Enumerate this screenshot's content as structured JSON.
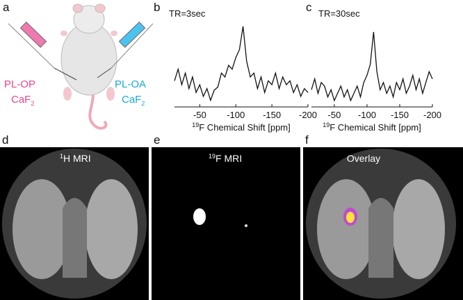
{
  "figure": {
    "panel_a": {
      "letter": "a",
      "left_label": {
        "line1": "PL-OP",
        "line2": "CaF",
        "sub": "2"
      },
      "right_label": {
        "line1": "PL-OA",
        "line2": "CaF",
        "sub": "2"
      }
    },
    "panel_d": {
      "letter": "d",
      "sup": "1",
      "label": "H MRI"
    },
    "panel_e": {
      "letter": "e",
      "sup": "19",
      "label": "F MRI"
    },
    "panel_f": {
      "letter": "f",
      "label": "Overlay"
    }
  },
  "chart_data": [
    {
      "type": "line",
      "panel": "b",
      "title": "TR=3sec",
      "x_label_sup": "19",
      "x_label": "F Chemical Shift [ppm]",
      "color": "#111111",
      "x": [
        -15,
        -20,
        -25,
        -30,
        -35,
        -40,
        -45,
        -50,
        -55,
        -60,
        -65,
        -70,
        -75,
        -80,
        -85,
        -90,
        -95,
        -100,
        -105,
        -110,
        -115,
        -120,
        -125,
        -130,
        -135,
        -140,
        -145,
        -150,
        -155,
        -160,
        -165,
        -170,
        -175,
        -180,
        -185,
        -190,
        -195,
        -200
      ],
      "values": [
        30,
        45,
        25,
        40,
        20,
        35,
        15,
        25,
        10,
        20,
        5,
        18,
        22,
        40,
        35,
        50,
        45,
        60,
        70,
        100,
        55,
        35,
        40,
        20,
        35,
        15,
        30,
        25,
        40,
        20,
        35,
        25,
        30,
        15,
        25,
        10,
        20,
        15
      ],
      "xlim": [
        -15,
        -200
      ],
      "xticks": [
        -50,
        -100,
        -150,
        -200
      ],
      "ylim": [
        0,
        100
      ]
    },
    {
      "type": "line",
      "panel": "c",
      "title": "TR=30sec",
      "x_label_sup": "19",
      "x_label": "F Chemical Shift [ppm]",
      "color": "#111111",
      "x": [
        -15,
        -20,
        -25,
        -30,
        -35,
        -40,
        -45,
        -50,
        -55,
        -60,
        -65,
        -70,
        -75,
        -80,
        -85,
        -90,
        -95,
        -100,
        -105,
        -110,
        -115,
        -120,
        -125,
        -130,
        -135,
        -140,
        -145,
        -150,
        -155,
        -160,
        -165,
        -170,
        -175,
        -180,
        -185,
        -190,
        -195,
        -200
      ],
      "values": [
        20,
        35,
        15,
        30,
        25,
        10,
        20,
        5,
        15,
        25,
        10,
        20,
        5,
        15,
        25,
        10,
        30,
        40,
        55,
        100,
        45,
        20,
        30,
        15,
        25,
        10,
        30,
        20,
        35,
        15,
        25,
        40,
        20,
        35,
        15,
        30,
        45,
        35
      ],
      "xlim": [
        -15,
        -200
      ],
      "xticks": [
        -50,
        -100,
        -150,
        -200
      ],
      "ylim": [
        0,
        100
      ]
    }
  ]
}
